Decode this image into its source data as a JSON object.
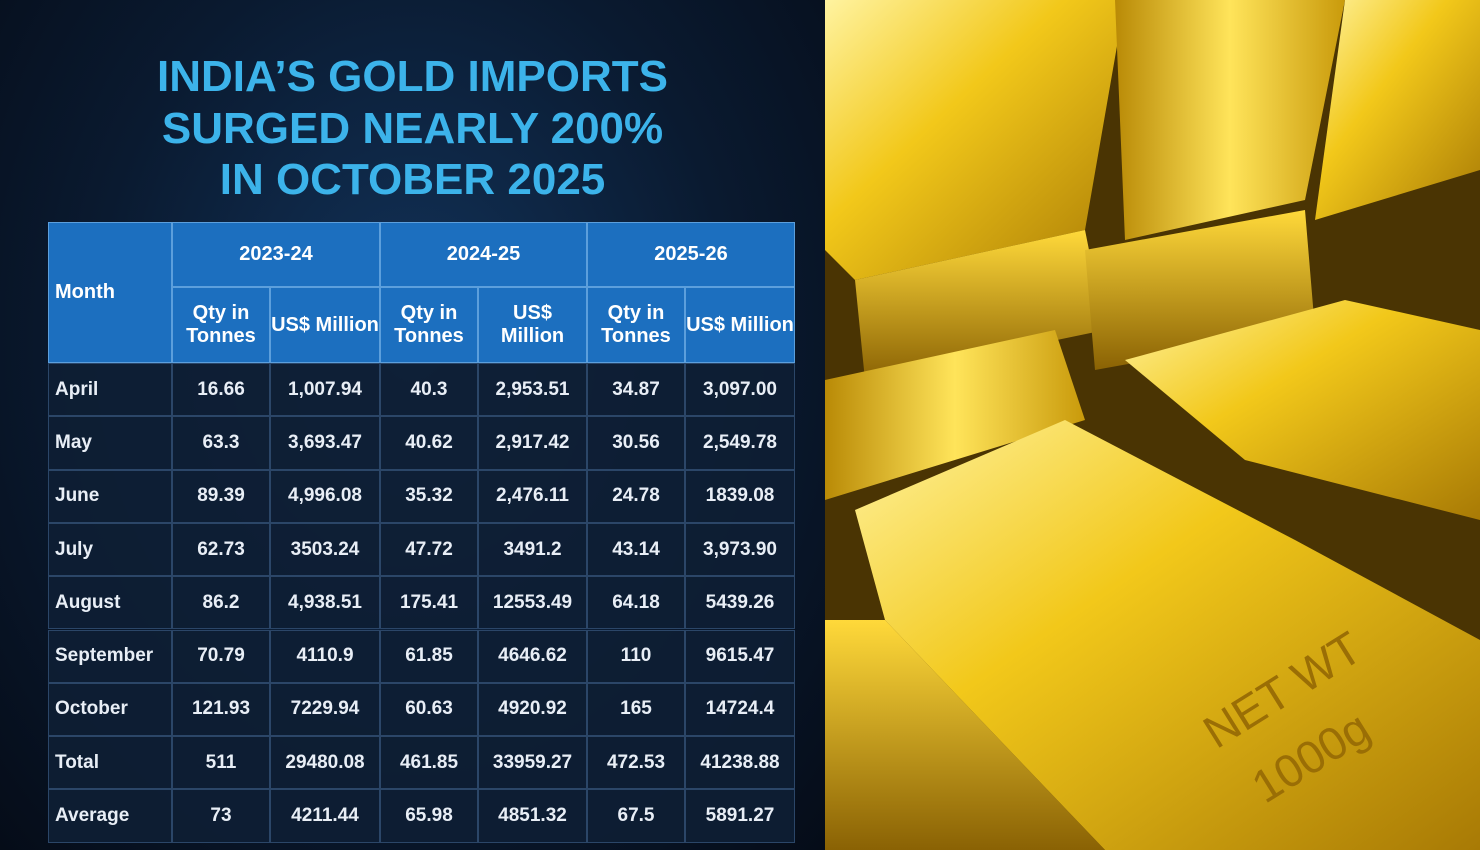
{
  "header": {
    "title_lines": [
      "INDIA’S GOLD IMPORTS",
      "SURGED NEARLY 200%",
      "IN OCTOBER 2025"
    ]
  },
  "table": {
    "month_header": "Month",
    "groups": [
      "2023-24",
      "2024-25",
      "2025-26"
    ],
    "subheaders": [
      "Qty in Tonnes",
      "US$ Million",
      "Qty in Tonnes",
      "US$ Million",
      "Qty in Tonnes",
      "US$ Million"
    ],
    "rows": [
      [
        "April",
        "16.66",
        "1,007.94",
        "40.3",
        "2,953.51",
        "34.87",
        "3,097.00"
      ],
      [
        "May",
        "63.3",
        "3,693.47",
        "40.62",
        "2,917.42",
        "30.56",
        "2,549.78"
      ],
      [
        "June",
        "89.39",
        "4,996.08",
        "35.32",
        "2,476.11",
        "24.78",
        "1839.08"
      ],
      [
        "July",
        "62.73",
        "3503.24",
        "47.72",
        "3491.2",
        "43.14",
        "3,973.90"
      ],
      [
        "August",
        "86.2",
        "4,938.51",
        "175.41",
        "12553.49",
        "64.18",
        "5439.26"
      ],
      [
        "September",
        "70.79",
        "4110.9",
        "61.85",
        "4646.62",
        "110",
        "9615.47"
      ],
      [
        "October",
        "121.93",
        "7229.94",
        "60.63",
        "4920.92",
        "165",
        "14724.4"
      ],
      [
        "Total",
        "511",
        "29480.08",
        "461.85",
        "33959.27",
        "472.53",
        "41238.88"
      ],
      [
        "Average",
        "73",
        "4211.44",
        "65.98",
        "4851.32",
        "67.5",
        "5891.27"
      ]
    ]
  },
  "image": {
    "engraving": [
      "NET WT",
      "1000g"
    ]
  }
}
